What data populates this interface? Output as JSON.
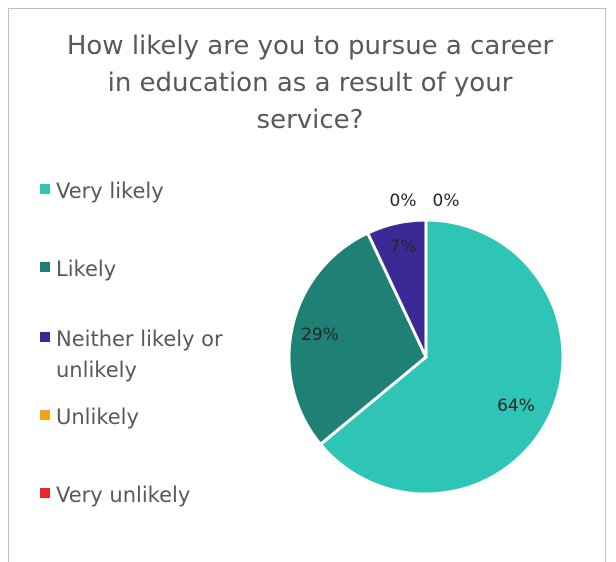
{
  "chart_data": {
    "type": "pie",
    "title": "How likely are you to pursue a career in education as a result of your service?",
    "legend_position": "left",
    "slices": [
      {
        "label": "Very likely",
        "value": 64,
        "display": "64%",
        "color": "#2ec4b6"
      },
      {
        "label": "Likely",
        "value": 29,
        "display": "29%",
        "color": "#1f8075"
      },
      {
        "label": "Neither likely or unlikely",
        "value": 7,
        "display": "7%",
        "color": "#3b2a96"
      },
      {
        "label": "Unlikely",
        "value": 0,
        "display": "0%",
        "color": "#f5a11a"
      },
      {
        "label": "Very unlikely",
        "value": 0,
        "display": "0%",
        "color": "#e8262f"
      }
    ]
  }
}
